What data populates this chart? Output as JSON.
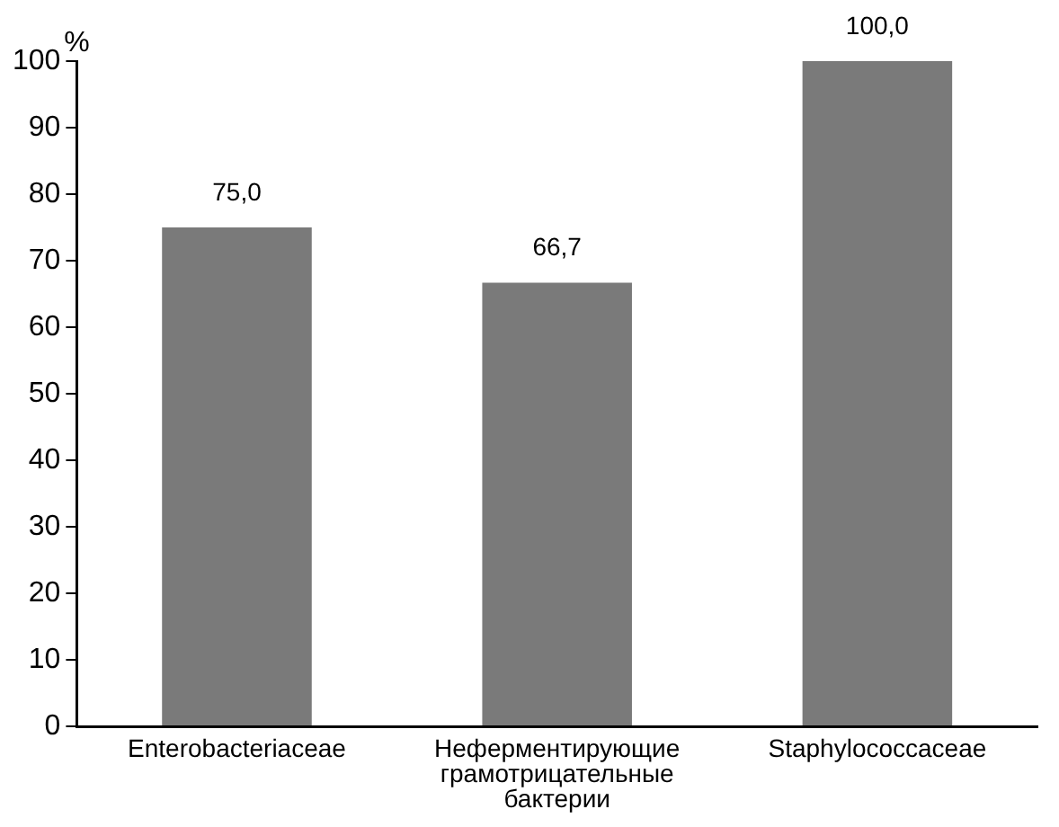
{
  "chart_data": {
    "type": "bar",
    "ylabel": "%",
    "categories": [
      "Enterobacteriaceae",
      "Неферментирующие грамотрицательные бактерии",
      "Staphylococcaceae"
    ],
    "values": [
      75.0,
      66.7,
      100.0
    ],
    "value_labels": [
      "75,0",
      "66,7",
      "100,0"
    ],
    "color": "#7a7a7a",
    "ylim": [
      0,
      100
    ],
    "yticks": [
      0,
      10,
      20,
      30,
      40,
      50,
      60,
      70,
      80,
      90,
      100
    ],
    "grid": false,
    "legend": false
  }
}
